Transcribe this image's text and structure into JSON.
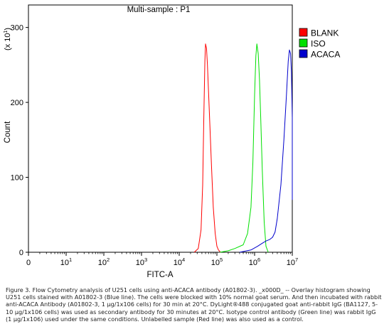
{
  "chart_data": {
    "type": "line",
    "title": "Multi-sample : P1",
    "xlabel": "FITC-A",
    "ylabel": "Count",
    "y_multiplier": "(x 10",
    "y_multiplier_exp": "1",
    "y_multiplier_close": ")",
    "xscale": "log",
    "xlim": [
      1,
      10000000
    ],
    "ylim": [
      0,
      330
    ],
    "x_ticks": [
      {
        "base": "0",
        "exp": "",
        "value": 1
      },
      {
        "base": "10",
        "exp": "1",
        "value": 10
      },
      {
        "base": "10",
        "exp": "2",
        "value": 100
      },
      {
        "base": "10",
        "exp": "3",
        "value": 1000
      },
      {
        "base": "10",
        "exp": "4",
        "value": 10000
      },
      {
        "base": "10",
        "exp": "5",
        "value": 100000
      },
      {
        "base": "10",
        "exp": "6",
        "value": 1000000
      },
      {
        "base": "10",
        "exp": "7",
        "value": 10000000
      }
    ],
    "y_ticks": [
      0,
      100,
      200,
      300
    ],
    "grid": false,
    "legend_position": "top-right",
    "series": [
      {
        "name": "BLANK",
        "color": "#ff0000",
        "x": [
          25000,
          32000,
          38000,
          42000,
          45000,
          48000,
          50000,
          53000,
          56000,
          60000,
          65000,
          72000,
          80000,
          90000,
          100000,
          110000,
          125000
        ],
        "y": [
          0,
          5,
          30,
          90,
          180,
          255,
          278,
          272,
          250,
          215,
          170,
          115,
          60,
          25,
          8,
          3,
          0
        ]
      },
      {
        "name": "ISO",
        "color": "#00e000",
        "x": [
          120000,
          200000,
          300000,
          500000,
          650000,
          800000,
          900000,
          1000000,
          1080000,
          1150000,
          1250000,
          1350000,
          1450000,
          1600000,
          1800000,
          2000000,
          2300000
        ],
        "y": [
          0,
          2,
          5,
          10,
          25,
          60,
          120,
          210,
          262,
          278,
          265,
          230,
          180,
          110,
          40,
          8,
          0
        ]
      },
      {
        "name": "ACACA",
        "color": "#0000cc",
        "x": [
          400000,
          800000,
          1200000,
          1600000,
          2000000,
          2500000,
          3000000,
          3500000,
          4000000,
          5000000,
          6000000,
          7000000,
          7800000,
          8400000,
          9000000,
          9500000,
          10000000,
          10500000,
          11000000
        ],
        "y": [
          0,
          3,
          8,
          12,
          15,
          17,
          20,
          27,
          45,
          90,
          150,
          210,
          255,
          270,
          265,
          240,
          180,
          110,
          70
        ]
      }
    ]
  },
  "caption": "Figure 3. Flow Cytometry analysis of U251 cells using anti-ACACA antibody (A01802-3). _x000D_ -- Overlay histogram showing U251 cells stained with A01802-3 (Blue line). The cells were blocked with 10% normal goat serum. And then incubated with rabbit anti-ACACA Antibody (A01802-3, 1 µg/1x106 cells) for 30 min at 20°C. DyLight®488 conjugated goat anti-rabbit IgG (BA1127, 5-10 µg/1x106 cells) was used as secondary antibody for 30 minutes at 20°C. Isotype control antibody (Green line) was rabbit IgG (1 µg/1x106) used under the same conditions. Unlabelled sample (Red line) was also used as a control."
}
